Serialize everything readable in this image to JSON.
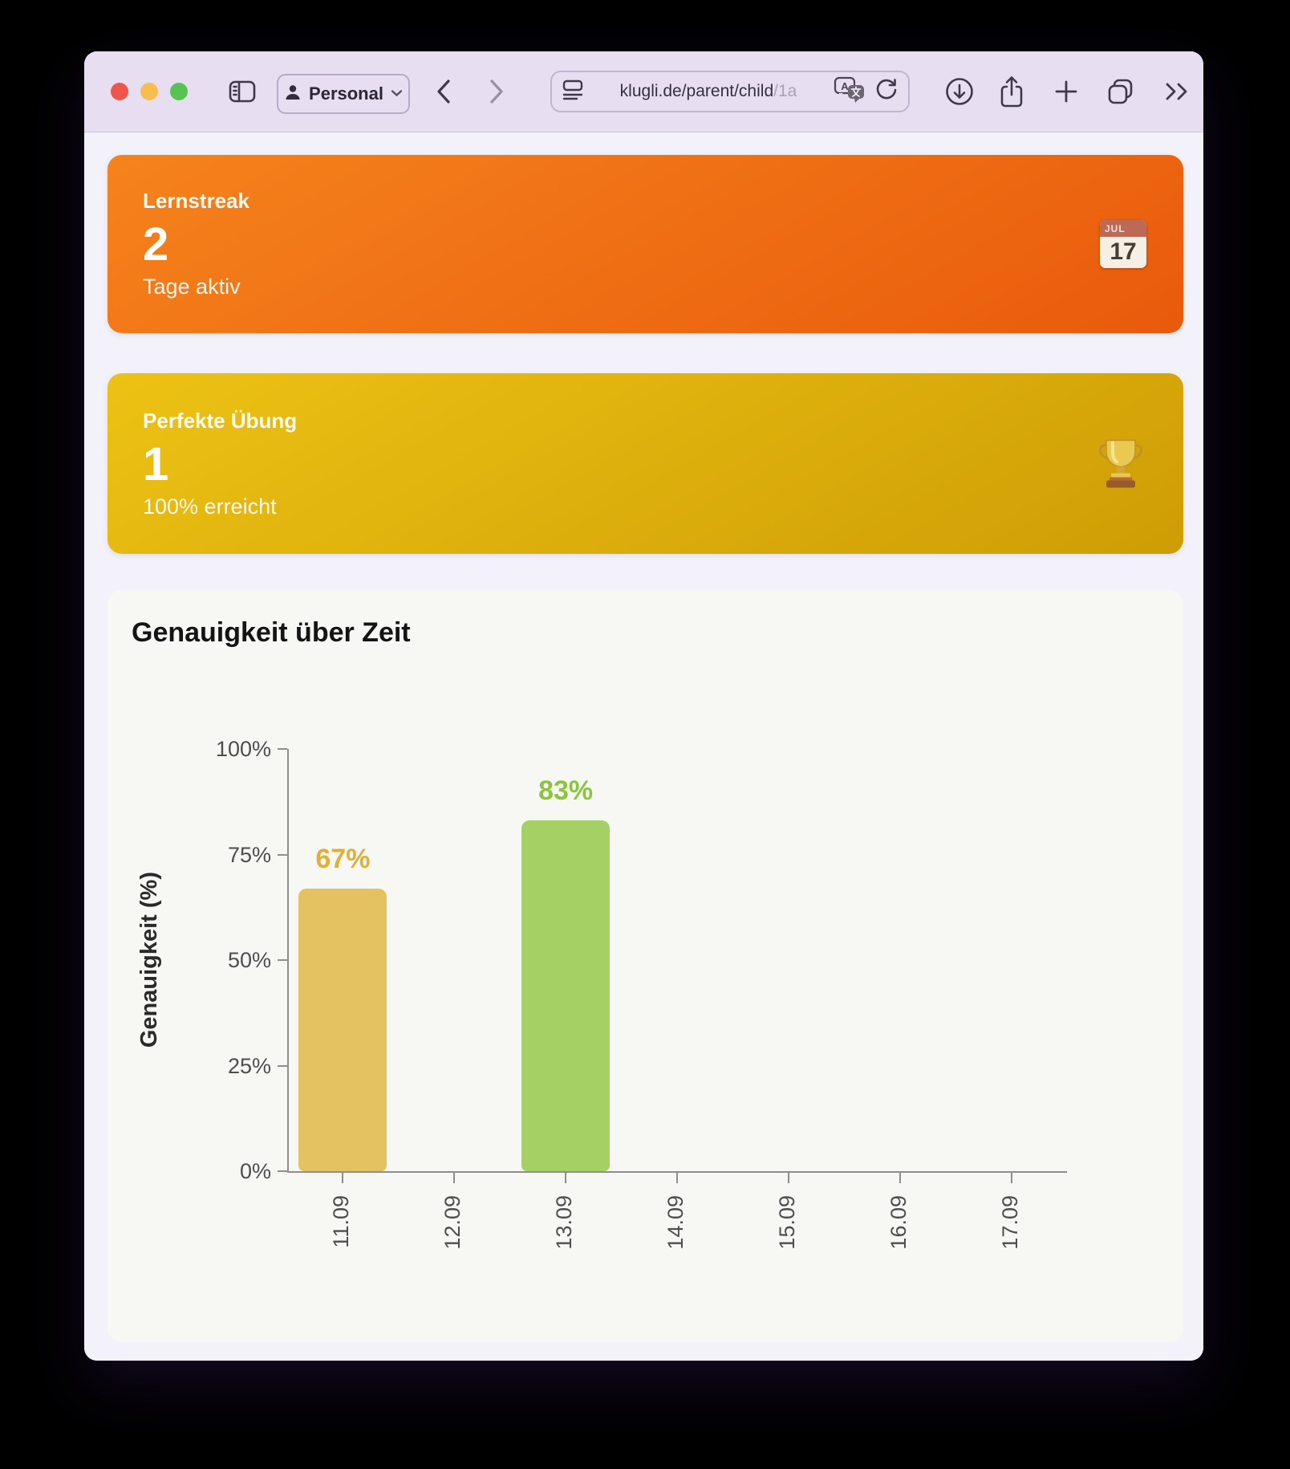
{
  "toolbar": {
    "profile_label": "Personal",
    "url": "klugli.de/parent/child",
    "url_suffix": "/1a"
  },
  "stat_cards": {
    "lernstreak": {
      "title": "Lernstreak",
      "value": "2",
      "subtitle": "Tage aktiv",
      "calendar_month": "JUL",
      "calendar_day": "17"
    },
    "perfekte_uebung": {
      "title": "Perfekte Übung",
      "value": "1",
      "subtitle": "100% erreicht"
    }
  },
  "chart_card": {
    "title": "Genauigkeit über Zeit"
  },
  "chart_data": {
    "type": "bar",
    "title": "Genauigkeit über Zeit",
    "categories": [
      "11.09",
      "12.09",
      "13.09",
      "14.09",
      "15.09",
      "16.09",
      "17.09"
    ],
    "values": [
      67,
      null,
      83,
      null,
      null,
      null,
      null
    ],
    "value_labels": [
      "67%",
      null,
      "83%",
      null,
      null,
      null,
      null
    ],
    "bar_colors": [
      "#E4C262",
      null,
      "#A5D063",
      null,
      null,
      null,
      null
    ],
    "label_colors": [
      "#DFAF3B",
      null,
      "#8BC53E",
      null,
      null,
      null,
      null
    ],
    "xlabel": "",
    "ylabel": "Genauigkeit (%)",
    "ylim": [
      0,
      100
    ],
    "yticks": [
      "0%",
      "25%",
      "50%",
      "75%",
      "100%"
    ],
    "grid": false,
    "legend": null
  },
  "colors": {
    "toolbar_bg": "#E7DEF2",
    "page_bg": "#F3F2FA",
    "chart_card_bg": "#F7F8F4",
    "streak_gradient_start": "#F5831C",
    "streak_gradient_end": "#E95A0C",
    "gold_gradient_start": "#EDC214",
    "gold_gradient_end": "#CE9D05",
    "bar_yellow": "#E4C262",
    "bar_green": "#A5D063",
    "bar_label_yellow": "#DFAF3B",
    "bar_label_green": "#8BC53E"
  }
}
